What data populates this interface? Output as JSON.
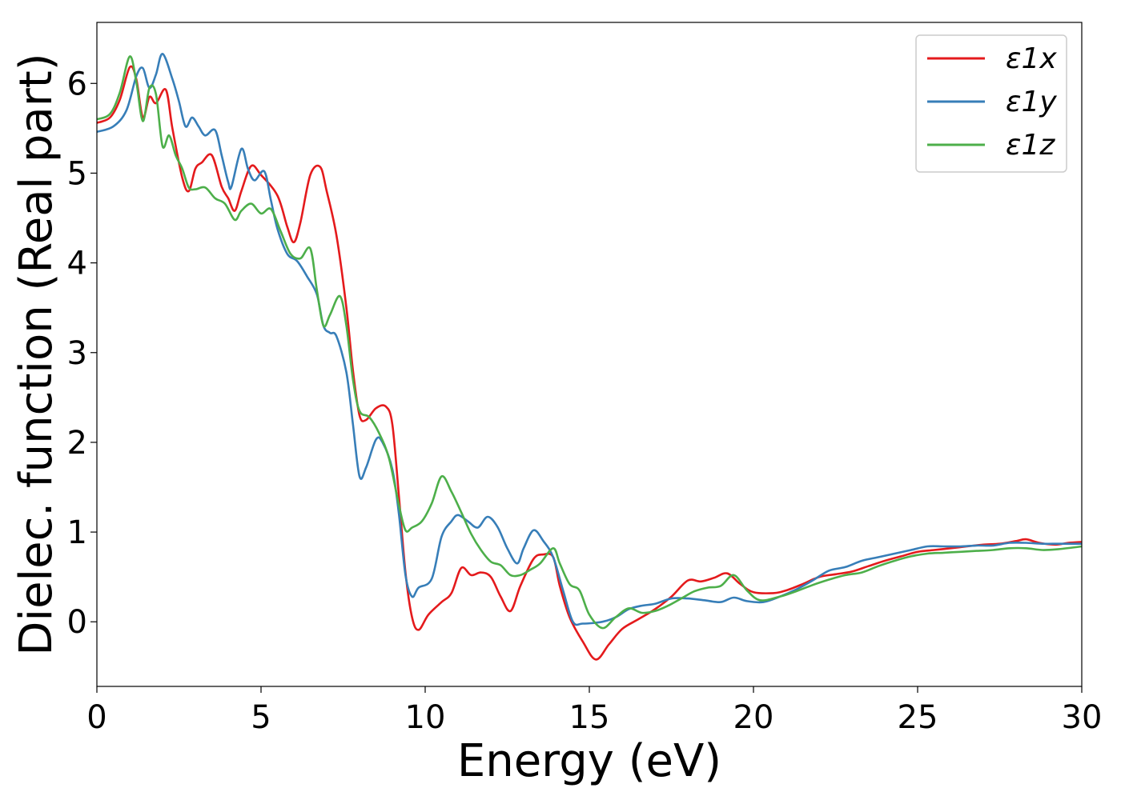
{
  "chart_data": {
    "type": "line",
    "xlabel": "Energy (eV)",
    "ylabel": "Dielec. function (Real part)",
    "xlim": [
      0,
      30
    ],
    "ylim": [
      -0.72,
      6.68
    ],
    "xticks": [
      0,
      5,
      10,
      15,
      20,
      25,
      30
    ],
    "xtick_labels": [
      "0",
      "5",
      "10",
      "15",
      "20",
      "25",
      "30"
    ],
    "yticks": [
      0,
      1,
      2,
      3,
      4,
      5,
      6
    ],
    "ytick_labels": [
      "0",
      "1",
      "2",
      "3",
      "4",
      "5",
      "6"
    ],
    "grid": false,
    "legend_position": "top-right",
    "series": [
      {
        "name": "ε1x",
        "color": "#e41a1c",
        "points": [
          [
            0,
            5.56
          ],
          [
            0.4,
            5.62
          ],
          [
            0.7,
            5.82
          ],
          [
            1.0,
            6.18
          ],
          [
            1.2,
            6.05
          ],
          [
            1.4,
            5.62
          ],
          [
            1.6,
            5.85
          ],
          [
            1.8,
            5.78
          ],
          [
            2.1,
            5.93
          ],
          [
            2.3,
            5.5
          ],
          [
            2.6,
            4.95
          ],
          [
            2.8,
            4.8
          ],
          [
            3.0,
            5.05
          ],
          [
            3.2,
            5.12
          ],
          [
            3.5,
            5.2
          ],
          [
            3.8,
            4.85
          ],
          [
            4.0,
            4.72
          ],
          [
            4.2,
            4.58
          ],
          [
            4.4,
            4.8
          ],
          [
            4.7,
            5.08
          ],
          [
            5.0,
            4.98
          ],
          [
            5.5,
            4.75
          ],
          [
            5.8,
            4.4
          ],
          [
            6.0,
            4.23
          ],
          [
            6.2,
            4.45
          ],
          [
            6.5,
            4.98
          ],
          [
            6.8,
            5.07
          ],
          [
            7.0,
            4.8
          ],
          [
            7.3,
            4.3
          ],
          [
            7.6,
            3.5
          ],
          [
            7.8,
            2.8
          ],
          [
            8.0,
            2.3
          ],
          [
            8.2,
            2.25
          ],
          [
            8.5,
            2.38
          ],
          [
            8.8,
            2.4
          ],
          [
            9.0,
            2.2
          ],
          [
            9.2,
            1.4
          ],
          [
            9.4,
            0.55
          ],
          [
            9.6,
            0.05
          ],
          [
            9.8,
            -0.09
          ],
          [
            10.1,
            0.08
          ],
          [
            10.5,
            0.22
          ],
          [
            10.8,
            0.32
          ],
          [
            11.1,
            0.6
          ],
          [
            11.4,
            0.52
          ],
          [
            11.7,
            0.55
          ],
          [
            12.0,
            0.5
          ],
          [
            12.3,
            0.28
          ],
          [
            12.6,
            0.12
          ],
          [
            12.9,
            0.4
          ],
          [
            13.3,
            0.7
          ],
          [
            13.6,
            0.75
          ],
          [
            13.9,
            0.72
          ],
          [
            14.1,
            0.4
          ],
          [
            14.4,
            0.05
          ],
          [
            14.8,
            -0.22
          ],
          [
            15.2,
            -0.42
          ],
          [
            15.6,
            -0.25
          ],
          [
            16.0,
            -0.08
          ],
          [
            16.5,
            0.03
          ],
          [
            17.0,
            0.14
          ],
          [
            17.5,
            0.28
          ],
          [
            18.0,
            0.46
          ],
          [
            18.4,
            0.45
          ],
          [
            18.8,
            0.49
          ],
          [
            19.2,
            0.54
          ],
          [
            19.6,
            0.42
          ],
          [
            20.0,
            0.33
          ],
          [
            20.6,
            0.32
          ],
          [
            21.0,
            0.35
          ],
          [
            21.5,
            0.42
          ],
          [
            22.0,
            0.5
          ],
          [
            22.5,
            0.53
          ],
          [
            23.0,
            0.56
          ],
          [
            23.5,
            0.62
          ],
          [
            24.0,
            0.68
          ],
          [
            24.5,
            0.73
          ],
          [
            25.0,
            0.78
          ],
          [
            25.5,
            0.8
          ],
          [
            26.0,
            0.82
          ],
          [
            26.5,
            0.84
          ],
          [
            27.0,
            0.86
          ],
          [
            27.5,
            0.87
          ],
          [
            28.0,
            0.9
          ],
          [
            28.3,
            0.92
          ],
          [
            28.7,
            0.88
          ],
          [
            29.2,
            0.86
          ],
          [
            29.6,
            0.88
          ],
          [
            30,
            0.89
          ]
        ]
      },
      {
        "name": "ε1y",
        "color": "#377eb8",
        "points": [
          [
            0,
            5.46
          ],
          [
            0.5,
            5.52
          ],
          [
            0.9,
            5.7
          ],
          [
            1.2,
            6.08
          ],
          [
            1.4,
            6.17
          ],
          [
            1.6,
            5.95
          ],
          [
            1.8,
            6.1
          ],
          [
            2.0,
            6.33
          ],
          [
            2.3,
            6.05
          ],
          [
            2.5,
            5.8
          ],
          [
            2.7,
            5.52
          ],
          [
            2.9,
            5.62
          ],
          [
            3.1,
            5.52
          ],
          [
            3.3,
            5.42
          ],
          [
            3.6,
            5.48
          ],
          [
            3.8,
            5.2
          ],
          [
            4.0,
            4.9
          ],
          [
            4.1,
            4.85
          ],
          [
            4.4,
            5.27
          ],
          [
            4.6,
            5.05
          ],
          [
            4.8,
            4.92
          ],
          [
            5.1,
            5.02
          ],
          [
            5.3,
            4.7
          ],
          [
            5.5,
            4.38
          ],
          [
            5.8,
            4.1
          ],
          [
            6.1,
            4.02
          ],
          [
            6.4,
            3.85
          ],
          [
            6.7,
            3.65
          ],
          [
            6.9,
            3.3
          ],
          [
            7.1,
            3.22
          ],
          [
            7.3,
            3.18
          ],
          [
            7.6,
            2.78
          ],
          [
            7.8,
            2.2
          ],
          [
            8.0,
            1.62
          ],
          [
            8.2,
            1.72
          ],
          [
            8.5,
            2.03
          ],
          [
            8.7,
            2.0
          ],
          [
            9.0,
            1.7
          ],
          [
            9.2,
            1.2
          ],
          [
            9.4,
            0.52
          ],
          [
            9.6,
            0.28
          ],
          [
            9.8,
            0.38
          ],
          [
            10.2,
            0.48
          ],
          [
            10.5,
            0.95
          ],
          [
            10.8,
            1.12
          ],
          [
            11.0,
            1.19
          ],
          [
            11.3,
            1.12
          ],
          [
            11.6,
            1.05
          ],
          [
            11.9,
            1.17
          ],
          [
            12.2,
            1.06
          ],
          [
            12.5,
            0.82
          ],
          [
            12.8,
            0.65
          ],
          [
            13.0,
            0.82
          ],
          [
            13.3,
            1.02
          ],
          [
            13.6,
            0.9
          ],
          [
            13.9,
            0.72
          ],
          [
            14.2,
            0.35
          ],
          [
            14.5,
            0.0
          ],
          [
            14.8,
            -0.02
          ],
          [
            15.4,
            0.0
          ],
          [
            15.8,
            0.05
          ],
          [
            16.2,
            0.14
          ],
          [
            16.6,
            0.18
          ],
          [
            17.0,
            0.2
          ],
          [
            17.5,
            0.26
          ],
          [
            18.0,
            0.26
          ],
          [
            18.5,
            0.24
          ],
          [
            19.0,
            0.22
          ],
          [
            19.4,
            0.27
          ],
          [
            19.8,
            0.23
          ],
          [
            20.3,
            0.22
          ],
          [
            20.8,
            0.28
          ],
          [
            21.3,
            0.36
          ],
          [
            21.8,
            0.46
          ],
          [
            22.3,
            0.57
          ],
          [
            22.8,
            0.61
          ],
          [
            23.3,
            0.68
          ],
          [
            23.8,
            0.72
          ],
          [
            24.3,
            0.76
          ],
          [
            24.8,
            0.8
          ],
          [
            25.3,
            0.84
          ],
          [
            25.8,
            0.84
          ],
          [
            26.3,
            0.84
          ],
          [
            26.8,
            0.85
          ],
          [
            27.3,
            0.85
          ],
          [
            27.8,
            0.88
          ],
          [
            28.3,
            0.88
          ],
          [
            28.8,
            0.87
          ],
          [
            29.3,
            0.87
          ],
          [
            30,
            0.87
          ]
        ]
      },
      {
        "name": "ε1z",
        "color": "#4daf4a",
        "points": [
          [
            0,
            5.6
          ],
          [
            0.4,
            5.66
          ],
          [
            0.7,
            5.9
          ],
          [
            1.0,
            6.3
          ],
          [
            1.2,
            6.02
          ],
          [
            1.4,
            5.58
          ],
          [
            1.6,
            5.95
          ],
          [
            1.8,
            5.88
          ],
          [
            2.0,
            5.3
          ],
          [
            2.2,
            5.42
          ],
          [
            2.4,
            5.2
          ],
          [
            2.6,
            5.05
          ],
          [
            2.8,
            4.84
          ],
          [
            3.0,
            4.82
          ],
          [
            3.3,
            4.84
          ],
          [
            3.6,
            4.72
          ],
          [
            3.9,
            4.66
          ],
          [
            4.2,
            4.48
          ],
          [
            4.4,
            4.58
          ],
          [
            4.7,
            4.66
          ],
          [
            5.0,
            4.55
          ],
          [
            5.3,
            4.6
          ],
          [
            5.6,
            4.35
          ],
          [
            5.9,
            4.1
          ],
          [
            6.2,
            4.05
          ],
          [
            6.5,
            4.16
          ],
          [
            6.7,
            3.7
          ],
          [
            6.9,
            3.3
          ],
          [
            7.1,
            3.42
          ],
          [
            7.4,
            3.63
          ],
          [
            7.6,
            3.3
          ],
          [
            7.8,
            2.7
          ],
          [
            8.0,
            2.35
          ],
          [
            8.3,
            2.28
          ],
          [
            8.6,
            2.1
          ],
          [
            8.9,
            1.82
          ],
          [
            9.2,
            1.3
          ],
          [
            9.4,
            1.02
          ],
          [
            9.6,
            1.05
          ],
          [
            9.9,
            1.12
          ],
          [
            10.2,
            1.32
          ],
          [
            10.5,
            1.62
          ],
          [
            10.8,
            1.45
          ],
          [
            11.1,
            1.22
          ],
          [
            11.4,
            0.98
          ],
          [
            11.7,
            0.8
          ],
          [
            12.0,
            0.67
          ],
          [
            12.3,
            0.63
          ],
          [
            12.6,
            0.52
          ],
          [
            12.9,
            0.52
          ],
          [
            13.2,
            0.58
          ],
          [
            13.5,
            0.65
          ],
          [
            13.9,
            0.82
          ],
          [
            14.1,
            0.65
          ],
          [
            14.4,
            0.42
          ],
          [
            14.7,
            0.35
          ],
          [
            15.0,
            0.08
          ],
          [
            15.4,
            -0.07
          ],
          [
            15.8,
            0.05
          ],
          [
            16.2,
            0.15
          ],
          [
            16.6,
            0.1
          ],
          [
            17.0,
            0.12
          ],
          [
            17.4,
            0.18
          ],
          [
            17.8,
            0.26
          ],
          [
            18.2,
            0.34
          ],
          [
            18.6,
            0.38
          ],
          [
            19.0,
            0.4
          ],
          [
            19.4,
            0.52
          ],
          [
            19.8,
            0.35
          ],
          [
            20.2,
            0.24
          ],
          [
            20.8,
            0.28
          ],
          [
            21.3,
            0.34
          ],
          [
            21.8,
            0.41
          ],
          [
            22.3,
            0.47
          ],
          [
            22.8,
            0.52
          ],
          [
            23.3,
            0.55
          ],
          [
            23.8,
            0.62
          ],
          [
            24.3,
            0.68
          ],
          [
            24.8,
            0.73
          ],
          [
            25.3,
            0.76
          ],
          [
            25.8,
            0.77
          ],
          [
            26.3,
            0.78
          ],
          [
            26.8,
            0.79
          ],
          [
            27.3,
            0.8
          ],
          [
            27.8,
            0.82
          ],
          [
            28.3,
            0.82
          ],
          [
            28.8,
            0.8
          ],
          [
            29.3,
            0.81
          ],
          [
            30,
            0.84
          ]
        ]
      }
    ]
  }
}
